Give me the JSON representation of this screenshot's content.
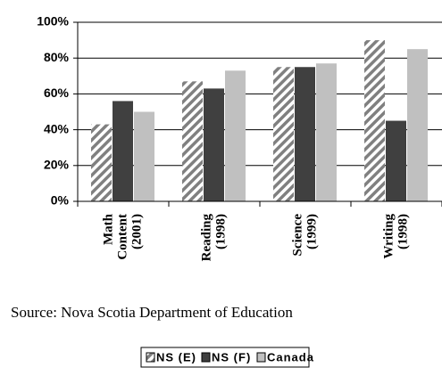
{
  "chart_data": {
    "type": "bar",
    "categories": [
      [
        "Math",
        "Content",
        "(2001)"
      ],
      [
        "Reading",
        "(1998)"
      ],
      [
        "Science",
        "(1999)"
      ],
      [
        "Writing",
        "(1998)"
      ]
    ],
    "series": [
      {
        "name": "NS (E)",
        "color": "#808080",
        "pattern": "hatch",
        "values": [
          43,
          67,
          75,
          90
        ]
      },
      {
        "name": "NS (F)",
        "color": "#404040",
        "values": [
          56,
          63,
          75,
          45
        ]
      },
      {
        "name": "Canada",
        "color": "#c0c0c0",
        "values": [
          50,
          73,
          77,
          85
        ]
      }
    ],
    "ylim": [
      0,
      100
    ],
    "yticks": [
      {
        "value": 0,
        "label": "0%"
      },
      {
        "value": 20,
        "label": "20%"
      },
      {
        "value": 40,
        "label": "40%"
      },
      {
        "value": 60,
        "label": "60%"
      },
      {
        "value": 80,
        "label": "80%"
      },
      {
        "value": 100,
        "label": "100%"
      }
    ],
    "grid": true,
    "source": "Source:  Nova Scotia Department of Education",
    "legend": "bottom"
  }
}
